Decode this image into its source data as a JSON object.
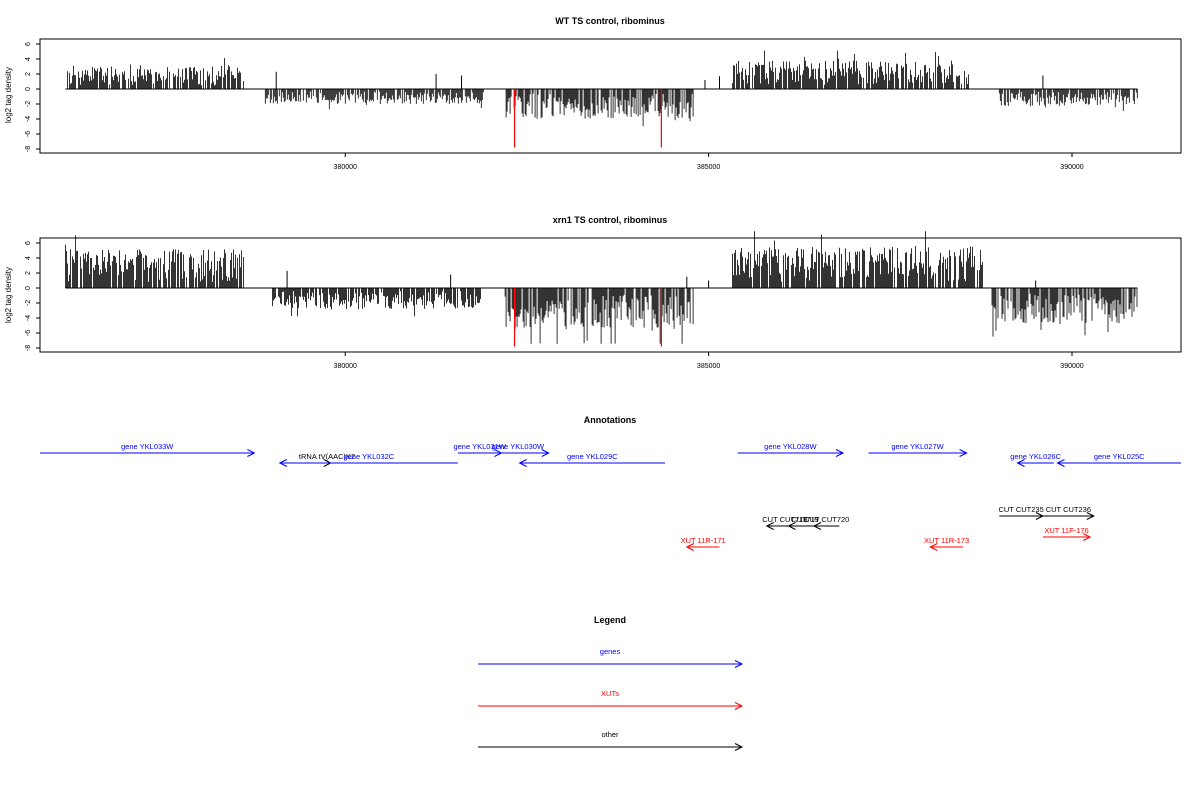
{
  "colors": {
    "gene": "#0000ff",
    "xut": "#ff0000",
    "other": "#000000",
    "highlight_bar": "#ff0000"
  },
  "chart_data": [
    {
      "type": "bar",
      "title": "WT TS control, ribominus",
      "ylabel": "log2 tag density",
      "xlabel": "",
      "xlim": [
        375800,
        391500
      ],
      "ylim": [
        -8,
        7
      ],
      "yticks": [
        6,
        4,
        2,
        0,
        -2,
        -4,
        -6,
        -8
      ],
      "xticks": [
        380000,
        385000,
        390000
      ],
      "xtick_labels": [
        "380000",
        "385000",
        "390000"
      ],
      "profile": {
        "positive_segments": [
          {
            "from": 376150,
            "to": 378600,
            "amp": 3.2
          },
          {
            "from": 385330,
            "to": 388600,
            "amp": 3.8
          }
        ],
        "negative_segments": [
          {
            "from": 378900,
            "to": 381900,
            "amp": 2.0
          },
          {
            "from": 382200,
            "to": 384800,
            "amp": 4.0
          },
          {
            "from": 389000,
            "to": 390900,
            "amp": 2.3
          }
        ],
        "sparse_positive": [
          {
            "x": 379050,
            "y": 2.3
          },
          {
            "x": 381250,
            "y": 2.0
          },
          {
            "x": 381600,
            "y": 1.8
          },
          {
            "x": 384950,
            "y": 1.2
          },
          {
            "x": 385150,
            "y": 1.7
          },
          {
            "x": 389600,
            "y": 1.8
          }
        ],
        "highlight_bars": [
          {
            "x": 382330,
            "y": -7.8
          },
          {
            "x": 384350,
            "y": -7.8
          }
        ]
      }
    },
    {
      "type": "bar",
      "title": "xrn1 TS control, ribominus",
      "ylabel": "log2 tag density",
      "xlabel": "",
      "xlim": [
        375800,
        391500
      ],
      "ylim": [
        -8,
        7
      ],
      "yticks": [
        6,
        4,
        2,
        0,
        -2,
        -4,
        -6,
        -8
      ],
      "xticks": [
        380000,
        385000,
        390000
      ],
      "xtick_labels": [
        "380000",
        "385000",
        "390000"
      ],
      "profile": {
        "positive_segments": [
          {
            "from": 376150,
            "to": 378600,
            "amp": 5.2
          },
          {
            "from": 385330,
            "to": 388800,
            "amp": 5.6
          }
        ],
        "negative_segments": [
          {
            "from": 379000,
            "to": 381900,
            "amp": 2.8
          },
          {
            "from": 382200,
            "to": 384800,
            "amp": 5.5
          },
          {
            "from": 388900,
            "to": 390900,
            "amp": 4.8
          }
        ],
        "sparse_positive": [
          {
            "x": 379200,
            "y": 2.3
          },
          {
            "x": 381450,
            "y": 1.8
          },
          {
            "x": 384700,
            "y": 1.5
          },
          {
            "x": 385000,
            "y": 1.0
          },
          {
            "x": 389500,
            "y": 1.0
          }
        ],
        "highlight_bars": [
          {
            "x": 382330,
            "y": -7.8
          },
          {
            "x": 384350,
            "y": -7.8
          }
        ]
      }
    }
  ],
  "annotations": {
    "title": "Annotations",
    "features": [
      {
        "label": "gene YKL033W",
        "type": "gene",
        "start": 375800,
        "end": 378750,
        "strand": "+",
        "row": 0
      },
      {
        "label": "tRNA tV(AAC)K2",
        "type": "other",
        "start": 379700,
        "end": 379800,
        "strand": "+",
        "row": 1
      },
      {
        "label": "gene YKL032C",
        "type": "gene",
        "start": 379100,
        "end": 381550,
        "strand": "-",
        "row": 1
      },
      {
        "label": "gene YKL031W",
        "type": "gene",
        "start": 381550,
        "end": 382150,
        "strand": "+",
        "row": 0
      },
      {
        "label": "gene YKL030W",
        "type": "gene",
        "start": 381950,
        "end": 382800,
        "strand": "+",
        "row": 0
      },
      {
        "label": "gene YKL029C",
        "type": "gene",
        "start": 382400,
        "end": 384400,
        "strand": "-",
        "row": 1
      },
      {
        "label": "gene YKL028W",
        "type": "gene",
        "start": 385400,
        "end": 386850,
        "strand": "+",
        "row": 0
      },
      {
        "label": "gene YKL027W",
        "type": "gene",
        "start": 387200,
        "end": 388550,
        "strand": "+",
        "row": 0
      },
      {
        "label": "gene YKL026C",
        "type": "gene",
        "start": 389250,
        "end": 389750,
        "strand": "-",
        "row": 1
      },
      {
        "label": "gene YKL025C",
        "type": "gene",
        "start": 389800,
        "end": 391500,
        "strand": "-",
        "row": 1
      },
      {
        "label": "CUT CUT718",
        "type": "other",
        "start": 385800,
        "end": 386300,
        "strand": "-",
        "row": 5
      },
      {
        "label": "CUT719",
        "type": "other",
        "start": 386100,
        "end": 386550,
        "strand": "-",
        "row": 5
      },
      {
        "label": "CUT CUT720",
        "type": "other",
        "start": 386450,
        "end": 386800,
        "strand": "-",
        "row": 5
      },
      {
        "label": "CUT CUT235",
        "type": "other",
        "start": 389000,
        "end": 389600,
        "strand": "+",
        "row": 4
      },
      {
        "label": "CUT CUT236",
        "type": "other",
        "start": 389600,
        "end": 390300,
        "strand": "+",
        "row": 4
      },
      {
        "label": "XUT 11R-171",
        "type": "xut",
        "start": 384700,
        "end": 385150,
        "strand": "-",
        "row": 7
      },
      {
        "label": "XUT 11R-173",
        "type": "xut",
        "start": 388050,
        "end": 388500,
        "strand": "-",
        "row": 7
      },
      {
        "label": "XUT 11F-176",
        "type": "xut",
        "start": 389600,
        "end": 390250,
        "strand": "+",
        "row": 6
      }
    ]
  },
  "legend": {
    "title": "Legend",
    "items": [
      {
        "label": "genes",
        "type": "gene"
      },
      {
        "label": "XUTs",
        "type": "xut"
      },
      {
        "label": "other",
        "type": "other"
      }
    ]
  }
}
